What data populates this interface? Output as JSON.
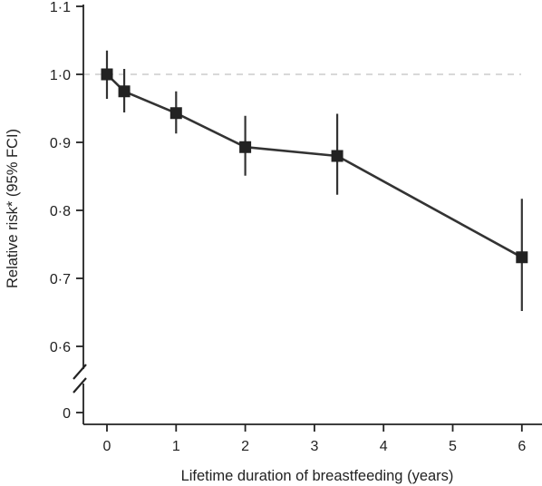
{
  "chart_data": {
    "type": "line",
    "xlabel": "Lifetime duration of breastfeeding (years)",
    "ylabel": "Relative risk* (95% FCI)",
    "xlim": [
      -0.2,
      6.4
    ],
    "ylim_upper": [
      0.6,
      1.1
    ],
    "axis_break": true,
    "y_zero_label": "0",
    "x_ticks": [
      {
        "value": 0,
        "label": "0"
      },
      {
        "value": 1,
        "label": "1"
      },
      {
        "value": 2,
        "label": "2"
      },
      {
        "value": 3,
        "label": "3"
      },
      {
        "value": 4,
        "label": "4"
      },
      {
        "value": 5,
        "label": "5"
      },
      {
        "value": 6,
        "label": "6"
      }
    ],
    "y_ticks": [
      {
        "value": 0.6,
        "label": "0·6"
      },
      {
        "value": 0.7,
        "label": "0·7"
      },
      {
        "value": 0.8,
        "label": "0·8"
      },
      {
        "value": 0.9,
        "label": "0·9"
      },
      {
        "value": 1.0,
        "label": "1·0"
      },
      {
        "value": 1.1,
        "label": "1·1"
      }
    ],
    "reference_line": 1.0,
    "series": [
      {
        "x": [
          0,
          0.25,
          1,
          2,
          3.33,
          6
        ],
        "y": [
          1.0,
          0.975,
          0.943,
          0.893,
          0.88,
          0.731
        ],
        "ci_low": [
          0.964,
          0.944,
          0.913,
          0.851,
          0.823,
          0.652
        ],
        "ci_high": [
          1.035,
          1.008,
          0.975,
          0.939,
          0.942,
          0.817
        ]
      }
    ],
    "colors": {
      "line": "#333333",
      "reference": "#cccccc",
      "axis": "#222222"
    }
  }
}
